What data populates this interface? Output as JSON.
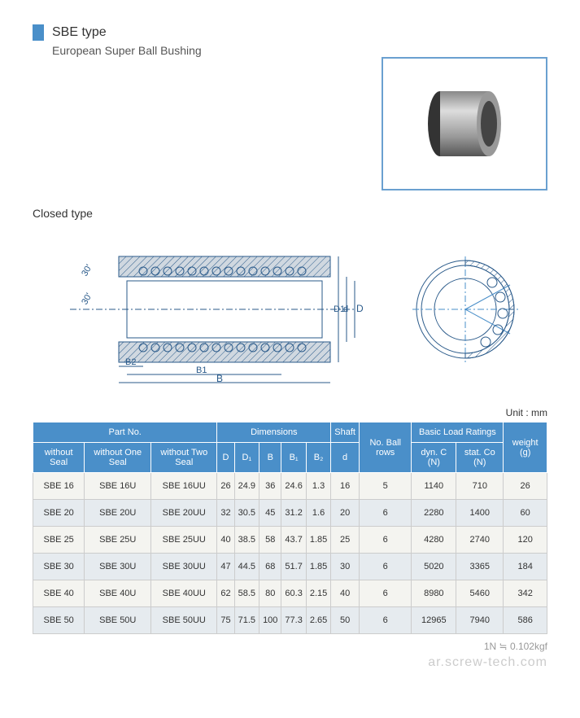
{
  "header": {
    "type_label": "SBE type",
    "subtitle": "European Super Ball Bushing"
  },
  "section": {
    "closed_type": "Closed type"
  },
  "diagram": {
    "angle": "30'",
    "d": "d",
    "D1": "D1",
    "D": "D",
    "B2": "B2",
    "B1": "B1",
    "B": "B"
  },
  "table": {
    "unit": "Unit : mm",
    "headers": {
      "part_no": "Part No.",
      "dimensions": "Dimensions",
      "shaft": "Shaft",
      "ball_rows": "No. Ball rows",
      "load_ratings": "Basic Load Ratings",
      "weight": "weight (g)",
      "without_seal": "without Seal",
      "without_one_seal": "without One Seal",
      "without_two_seal": "without Two Seal",
      "D": "D",
      "D1": "D₁",
      "B": "B",
      "B1": "B₁",
      "B2": "B₂",
      "d": "d",
      "dyn_c": "dyn. C (N)",
      "stat_co": "stat. Co (N)"
    },
    "rows": [
      {
        "p1": "SBE 16",
        "p2": "SBE 16U",
        "p3": "SBE 16UU",
        "D": "26",
        "D1": "24.9",
        "B": "36",
        "B1": "24.6",
        "B2": "1.3",
        "d": "16",
        "rows": "5",
        "dyn": "1140",
        "stat": "710",
        "w": "26"
      },
      {
        "p1": "SBE 20",
        "p2": "SBE 20U",
        "p3": "SBE 20UU",
        "D": "32",
        "D1": "30.5",
        "B": "45",
        "B1": "31.2",
        "B2": "1.6",
        "d": "20",
        "rows": "6",
        "dyn": "2280",
        "stat": "1400",
        "w": "60"
      },
      {
        "p1": "SBE 25",
        "p2": "SBE 25U",
        "p3": "SBE 25UU",
        "D": "40",
        "D1": "38.5",
        "B": "58",
        "B1": "43.7",
        "B2": "1.85",
        "d": "25",
        "rows": "6",
        "dyn": "4280",
        "stat": "2740",
        "w": "120"
      },
      {
        "p1": "SBE 30",
        "p2": "SBE 30U",
        "p3": "SBE 30UU",
        "D": "47",
        "D1": "44.5",
        "B": "68",
        "B1": "51.7",
        "B2": "1.85",
        "d": "30",
        "rows": "6",
        "dyn": "5020",
        "stat": "3365",
        "w": "184"
      },
      {
        "p1": "SBE 40",
        "p2": "SBE 40U",
        "p3": "SBE 40UU",
        "D": "62",
        "D1": "58.5",
        "B": "80",
        "B1": "60.3",
        "B2": "2.15",
        "d": "40",
        "rows": "6",
        "dyn": "8980",
        "stat": "5460",
        "w": "342"
      },
      {
        "p1": "SBE 50",
        "p2": "SBE 50U",
        "p3": "SBE 50UU",
        "D": "75",
        "D1": "71.5",
        "B": "100",
        "B1": "77.3",
        "B2": "2.65",
        "d": "50",
        "rows": "6",
        "dyn": "12965",
        "stat": "7940",
        "w": "586"
      }
    ]
  },
  "footer": {
    "note": "1N ≒ 0.102kgf",
    "watermark": "ar.screw-tech.com"
  },
  "colors": {
    "header_bg": "#4a8fc9",
    "border": "#cccccc",
    "row_odd": "#f4f4f0",
    "row_even": "#e6ebef"
  }
}
